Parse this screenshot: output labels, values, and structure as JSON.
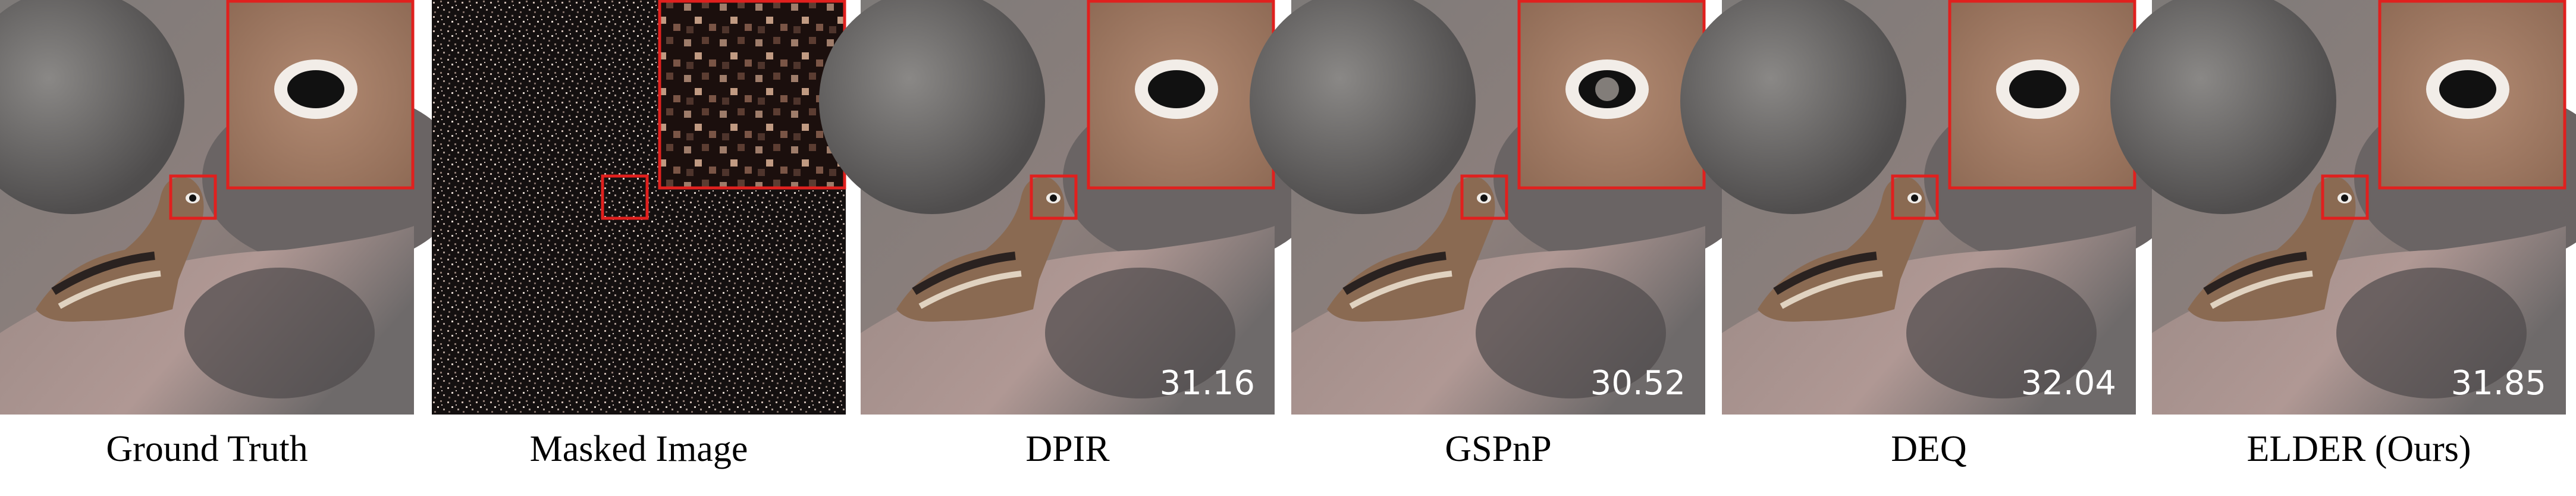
{
  "panels": [
    {
      "label": "Ground Truth"
    },
    {
      "label": "Masked Image"
    },
    {
      "label": "DPIR",
      "psnr": 31.16
    },
    {
      "label": "GSPnP",
      "psnr": 30.52
    },
    {
      "label": "DEQ",
      "psnr": 32.04
    },
    {
      "label": "ELDER (Ours)",
      "psnr": 31.85
    }
  ]
}
